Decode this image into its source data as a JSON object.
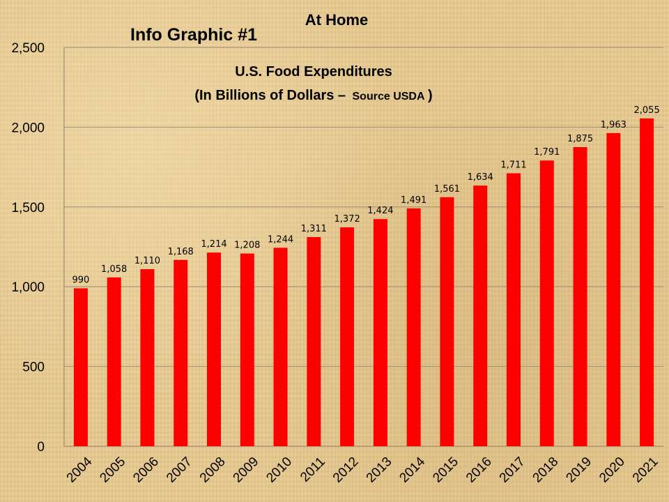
{
  "chart_data": {
    "type": "bar",
    "title": "At Home",
    "subtitle": "Info Graphic #1",
    "inner_title_line1": "U.S. Food Expenditures",
    "inner_title_line2_main": "(In Billions of Dollars –",
    "inner_title_line2_small": "Source USDA",
    "inner_title_line2_close": ")",
    "categories": [
      "2004",
      "2005",
      "2006",
      "2007",
      "2008",
      "2009",
      "2010",
      "2011",
      "2012",
      "2013",
      "2014",
      "2015",
      "2016",
      "2017",
      "2018",
      "2019",
      "2020",
      "2021"
    ],
    "values": [
      990,
      1058,
      1110,
      1168,
      1214,
      1208,
      1244,
      1311,
      1372,
      1424,
      1491,
      1561,
      1634,
      1711,
      1791,
      1875,
      1963,
      2055
    ],
    "data_labels": [
      "990",
      "1,058",
      "1,110",
      "1,168",
      "1,214",
      "1,208",
      "1,244",
      "1,311",
      "1,372",
      "1,424",
      "1,491",
      "1,561",
      "1,634",
      "1,711",
      "1,791",
      "1,875",
      "1,963",
      "2,055"
    ],
    "y_ticks": [
      0,
      500,
      1000,
      1500,
      2000,
      2500
    ],
    "y_tick_labels": [
      "0",
      "500",
      "1,000",
      "1,500",
      "2,000",
      "2,500"
    ],
    "ylim": [
      0,
      2500
    ],
    "grid": true,
    "bar_color": "#ff0000"
  }
}
